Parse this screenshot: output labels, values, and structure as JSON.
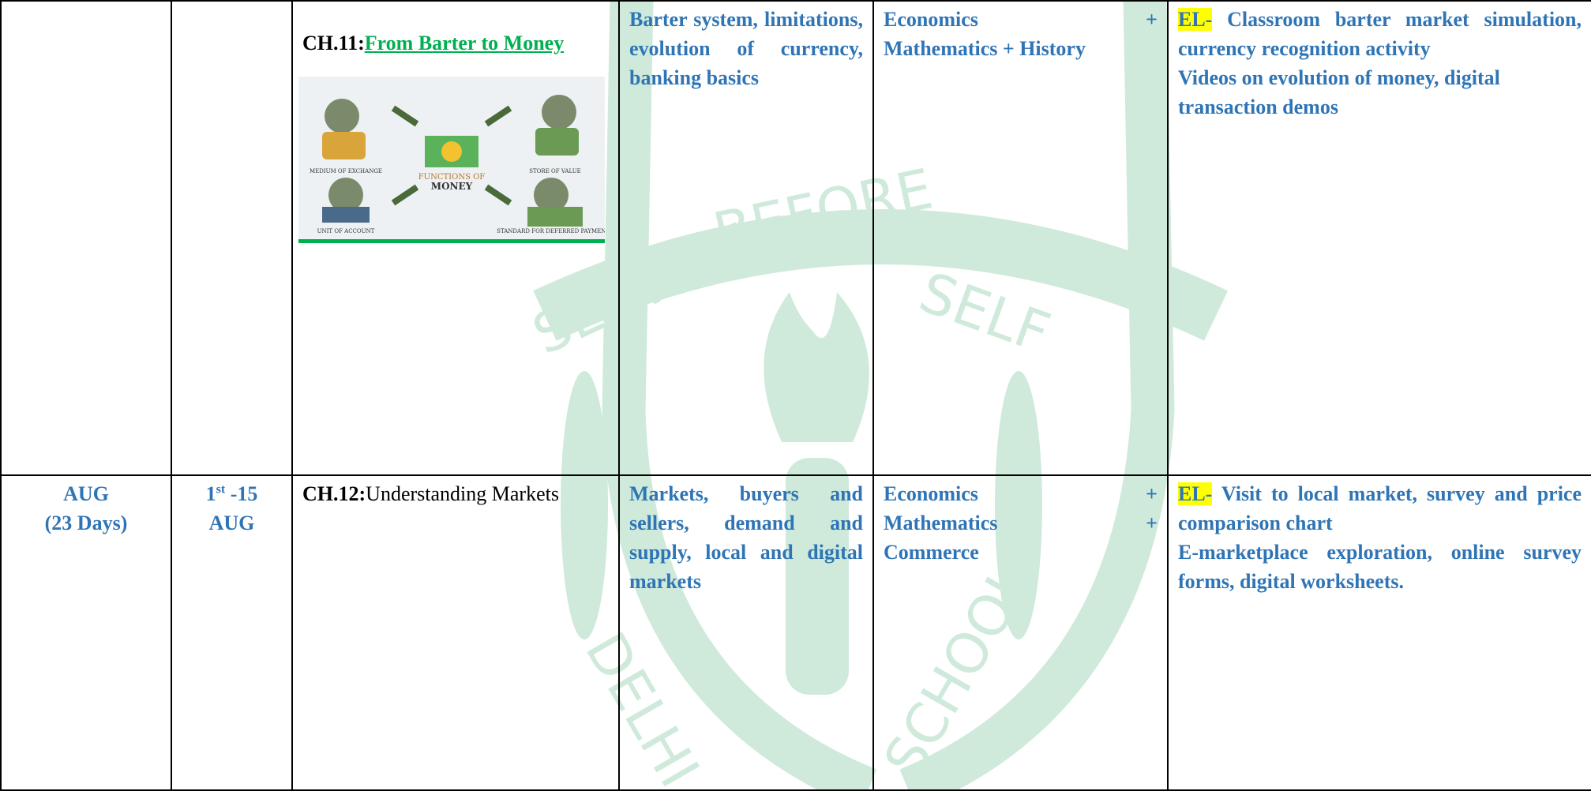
{
  "table": {
    "rows": [
      {
        "chapter": {
          "prefix": "CH.11:",
          "title": "From Barter to Money",
          "image": {
            "labels": [
              "MEDIUM OF EXCHANGE",
              "STORE OF VALUE",
              "FUNCTIONS OF",
              "MONEY",
              "UNIT OF ACCOUNT",
              "STANDARD FOR DEFERRED PAYMENTS"
            ]
          }
        },
        "topics": "Barter system, limitations, evolution of currency, banking basics",
        "subjects": [
          {
            "text": "Economics",
            "sep": "+"
          },
          {
            "text": "Mathematics + History"
          }
        ],
        "activities": [
          {
            "tag": "EL-",
            "text": "Classroom barter market simulation, currency recognition activity"
          },
          {
            "text": "Videos on evolution of money, digital transaction demos"
          }
        ]
      },
      {
        "month": {
          "name": "AUG",
          "days": "(23 Days)"
        },
        "dates": {
          "day": "1",
          "suffix": "st",
          "rest": "-15",
          "month": "AUG"
        },
        "chapter": {
          "prefix": "CH.12:",
          "title": "Understanding Markets"
        },
        "topics": "Markets, buyers and sellers, demand and supply, local and digital markets",
        "subjects": [
          {
            "text": "Economics",
            "sep": "+"
          },
          {
            "text": "Mathematics",
            "sep": "+"
          },
          {
            "text": "Commerce"
          }
        ],
        "activities": [
          {
            "tag": "EL-",
            "text": "Visit to local market, survey and price comparison chart"
          },
          {
            "text": "E-marketplace exploration, online survey forms, digital worksheets."
          }
        ]
      }
    ]
  },
  "watermark": {
    "words": [
      "BEFORE",
      "SERVICE",
      "SELF",
      "DELHI",
      "SCHOOL"
    ]
  }
}
